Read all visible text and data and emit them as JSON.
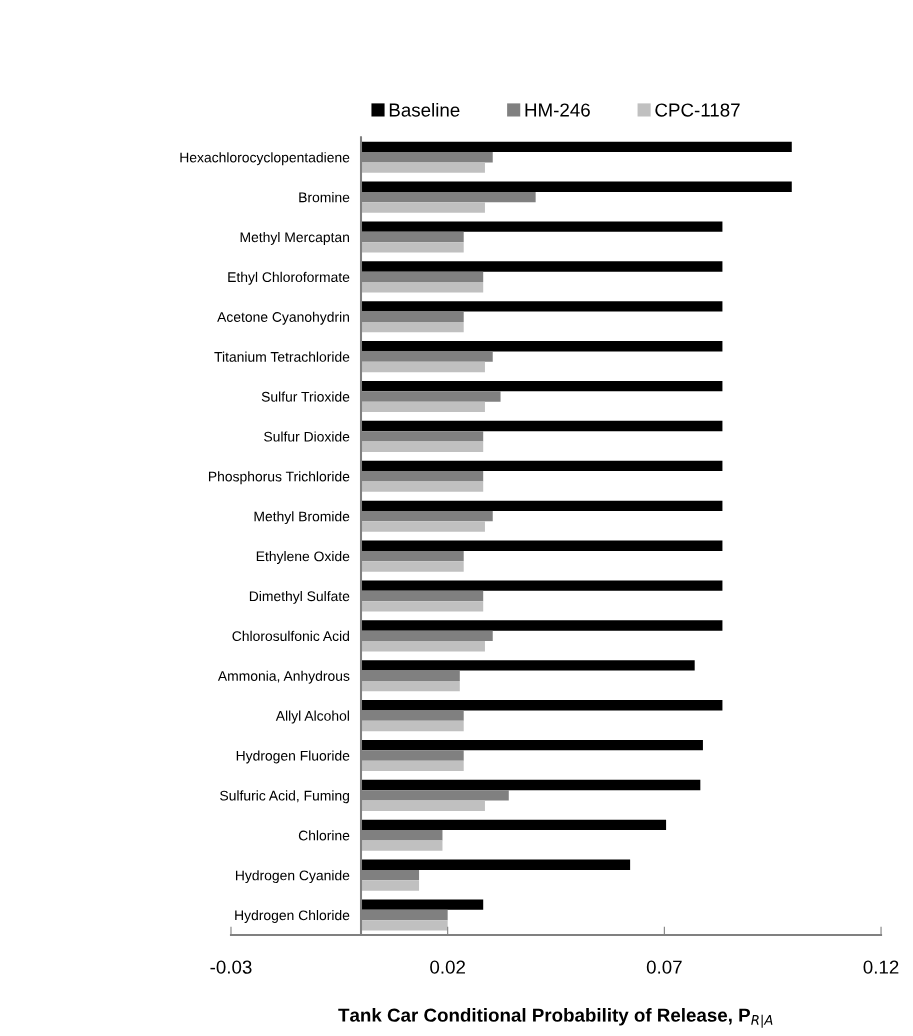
{
  "chart_data": {
    "type": "bar",
    "orientation": "horizontal",
    "xlabel": "Tank Car Conditional Probability of Release, P$_{R|A}$",
    "categories": [
      "Hexachlorocyclopentadiene",
      "Bromine",
      "Methyl Mercaptan",
      "Ethyl Chloroformate",
      "Acetone Cyanohydrin",
      "Titanium Tetrachloride",
      "Sulfur Trioxide",
      "Sulfur Dioxide",
      "Phosphorus Trichloride",
      "Methyl Bromide",
      "Ethylene Oxide",
      "Dimethyl Sulfate",
      "Chlorosulfonic Acid",
      "Ammonia, Anhydrous",
      "Allyl Alcohol",
      "Hydrogen Fluoride",
      "Sulfuric Acid, Fuming",
      "Chlorine",
      "Hydrogen Cyanide",
      "Hydrogen Chloride"
    ],
    "series": [
      {
        "name": "Baseline",
        "color": "#000000",
        "values": [
          0.0994,
          0.0994,
          0.0834,
          0.0834,
          0.0834,
          0.0834,
          0.0834,
          0.0834,
          0.0834,
          0.0834,
          0.0834,
          0.0834,
          0.0834,
          0.077,
          0.0834,
          0.0789,
          0.0783,
          0.0704,
          0.0621,
          0.0282
        ]
      },
      {
        "name": "HM-246",
        "color": "#808080",
        "values": [
          0.0304,
          0.0403,
          0.0237,
          0.0282,
          0.0237,
          0.0304,
          0.0322,
          0.0282,
          0.0282,
          0.0304,
          0.0237,
          0.0282,
          0.0304,
          0.0228,
          0.0237,
          0.0237,
          0.0341,
          0.0188,
          0.0134,
          0.02
        ]
      },
      {
        "name": "CPC-1187",
        "color": "#c0c0c0",
        "values": [
          0.0286,
          0.0286,
          0.0237,
          0.0282,
          0.0237,
          0.0286,
          0.0286,
          0.0282,
          0.0282,
          0.0286,
          0.0237,
          0.0282,
          0.0286,
          0.0228,
          0.0237,
          0.0237,
          0.0286,
          0.0188,
          0.0134,
          0.02
        ]
      }
    ],
    "xlim": [
      -0.03,
      0.12
    ],
    "xticks": [
      -0.03,
      0.02,
      0.07,
      0.12
    ],
    "grid": false,
    "legend": "top"
  }
}
